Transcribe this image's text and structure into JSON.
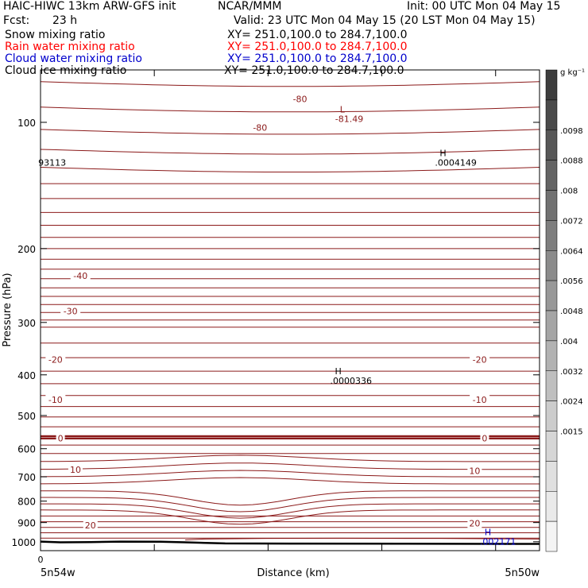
{
  "header": {
    "model": "HAIC-HIWC 13km ARW-GFS init",
    "org": "NCAR/MMM",
    "init": "Init: 00 UTC Mon 04 May 15",
    "fcst_label": "Fcst:",
    "fcst_value": "23 h",
    "valid": "Valid: 23 UTC Mon 04 May 15 (20 LST Mon 04 May 15)"
  },
  "fields": [
    {
      "name": "Snow mixing ratio",
      "xy": "XY= 251.0,100.0 to 284.7,100.0",
      "color": "#000000"
    },
    {
      "name": "Rain water mixing ratio",
      "xy": "XY= 251.0,100.0 to 284.7,100.0",
      "color": "#ff0000"
    },
    {
      "name": "Cloud water mixing ratio",
      "xy": "XY= 251.0,100.0 to 284.7,100.0",
      "color": "#0000cc"
    },
    {
      "name": "Cloud ice mixing ratio",
      "xy": "XY= 251.0,100.0 to 284.7,100.0",
      "color": "#000000"
    }
  ],
  "chart_data": {
    "type": "line",
    "subtype": "vertical cross-section contour plot",
    "ylabel": "Pressure (hPa)",
    "xlabel": "Distance (km)",
    "y_scale": "log",
    "ylim": [
      1050,
      75
    ],
    "y_ticks": [
      100,
      200,
      300,
      400,
      500,
      600,
      700,
      800,
      900,
      1000
    ],
    "xlim": [
      0,
      100
    ],
    "x_ticks": [
      0,
      22.8,
      45.6,
      68.4,
      91.2
    ],
    "x_start_label": "0",
    "x_left_label": "5n54w",
    "x_right_label": "5n50w",
    "temperature_contour_interval": 5,
    "temperature_labels": [
      {
        "text": "-80",
        "x": 52,
        "p": 88,
        "color": "#8b1a1a"
      },
      {
        "text": "-80",
        "x": 44,
        "p": 103,
        "color": "#8b1a1a"
      },
      {
        "text": "-40",
        "x": 8,
        "p": 232,
        "color": "#8b1a1a"
      },
      {
        "text": "-30",
        "x": 6,
        "p": 282,
        "color": "#8b1a1a"
      },
      {
        "text": "-20",
        "x": 3,
        "p": 368,
        "color": "#8b1a1a"
      },
      {
        "text": "-20",
        "x": 88,
        "p": 368,
        "color": "#8b1a1a"
      },
      {
        "text": "-10",
        "x": 3,
        "p": 458,
        "color": "#8b1a1a"
      },
      {
        "text": "-10",
        "x": 88,
        "p": 458,
        "color": "#8b1a1a"
      },
      {
        "text": "0",
        "x": 4,
        "p": 567,
        "color": "#8b1a1a"
      },
      {
        "text": "0",
        "x": 89,
        "p": 567,
        "color": "#8b1a1a"
      },
      {
        "text": "10",
        "x": 7,
        "p": 673,
        "color": "#8b1a1a"
      },
      {
        "text": "10",
        "x": 87,
        "p": 677,
        "color": "#8b1a1a"
      },
      {
        "text": "20",
        "x": 10,
        "p": 913,
        "color": "#8b1a1a"
      },
      {
        "text": "20",
        "x": 87,
        "p": 903,
        "color": "#8b1a1a"
      }
    ],
    "extrema": [
      {
        "kind": "L",
        "value": "-81.49",
        "x": 60,
        "p": 96,
        "color": "#8b1a1a"
      },
      {
        "kind": "H",
        "value": ".0004149",
        "x": 80,
        "p": 122,
        "color": "#000000"
      },
      {
        "kind": "",
        "value": "93113",
        "x": 0.5,
        "p": 122,
        "color": "#000000"
      },
      {
        "kind": "H",
        "value": ".0000336",
        "x": 59,
        "p": 404,
        "color": "#000000"
      },
      {
        "kind": "H",
        "value": ".002171",
        "x": 89,
        "p": 977,
        "color": "#0000cc"
      }
    ],
    "colorbar": {
      "unit": "g kg⁻¹",
      "labels": [
        ".0098",
        ".0088",
        ".008",
        ".0072",
        ".0064",
        ".0056",
        ".0048",
        ".004",
        ".0032",
        ".0024",
        ".0015"
      ],
      "colors": [
        "#3d3d3d",
        "#4a4a4a",
        "#575757",
        "#646464",
        "#717171",
        "#7e7e7e",
        "#8b8b8b",
        "#989898",
        "#a5a5a5",
        "#b2b2b2",
        "#bfbfbf",
        "#cccccc",
        "#d6d6d6",
        "#e0e0e0",
        "#eaeaea",
        "#f4f4f4"
      ]
    },
    "terrain_profile": [
      {
        "x": 0,
        "p": 999
      },
      {
        "x": 4,
        "p": 1003
      },
      {
        "x": 10,
        "p": 1002
      },
      {
        "x": 16,
        "p": 999
      },
      {
        "x": 24,
        "p": 1000
      },
      {
        "x": 29,
        "p": 1003
      },
      {
        "x": 37,
        "p": 1009
      },
      {
        "x": 50,
        "p": 1010
      },
      {
        "x": 100,
        "p": 1012
      }
    ]
  }
}
